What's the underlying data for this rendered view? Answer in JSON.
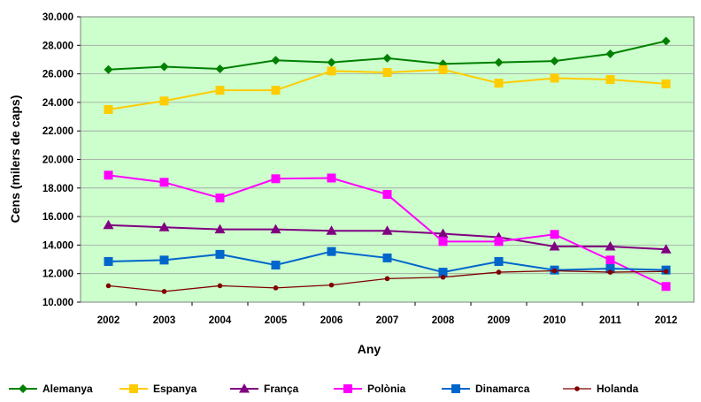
{
  "chart_data": {
    "type": "line",
    "title": "",
    "xlabel": "Any",
    "ylabel": "Cens (milers de caps)",
    "ylim": [
      10000,
      30000
    ],
    "y_ticks": [
      10000,
      12000,
      14000,
      16000,
      18000,
      20000,
      22000,
      24000,
      26000,
      28000,
      30000
    ],
    "y_tick_labels": [
      "10.000",
      "12.000",
      "14.000",
      "16.000",
      "18.000",
      "20.000",
      "22.000",
      "24.000",
      "26.000",
      "28.000",
      "30.000"
    ],
    "categories": [
      "2002",
      "2003",
      "2004",
      "2005",
      "2006",
      "2007",
      "2008",
      "2009",
      "2010",
      "2011",
      "2012"
    ],
    "grid": true,
    "plot_background": "#ccffcc",
    "legend_position": "bottom",
    "series": [
      {
        "name": "Alemanya",
        "color": "#008000",
        "marker": "diamond",
        "values": [
          26300,
          26500,
          26350,
          26950,
          26800,
          27100,
          26700,
          26800,
          26900,
          27400,
          28300
        ]
      },
      {
        "name": "Espanya",
        "color": "#ffcc00",
        "marker": "square",
        "values": [
          23500,
          24100,
          24850,
          24850,
          26200,
          26100,
          26300,
          25350,
          25700,
          25600,
          25300
        ]
      },
      {
        "name": "França",
        "color": "#800080",
        "marker": "triangle",
        "values": [
          15400,
          15250,
          15100,
          15100,
          15000,
          15000,
          14800,
          14550,
          13900,
          13900,
          13700
        ]
      },
      {
        "name": "Polònia",
        "color": "#ff00ff",
        "marker": "square",
        "values": [
          18900,
          18400,
          17300,
          18650,
          18700,
          17550,
          14250,
          14250,
          14750,
          12950,
          11100
        ]
      },
      {
        "name": "Dinamarca",
        "color": "#0066cc",
        "marker": "square",
        "values": [
          12850,
          12950,
          13350,
          12600,
          13550,
          13100,
          12100,
          12850,
          12250,
          12350,
          12250
        ]
      },
      {
        "name": "Holanda",
        "color": "#800000",
        "marker": "circle",
        "values": [
          11150,
          10750,
          11150,
          11000,
          11200,
          11650,
          11750,
          12100,
          12200,
          12100,
          12150
        ]
      }
    ]
  }
}
